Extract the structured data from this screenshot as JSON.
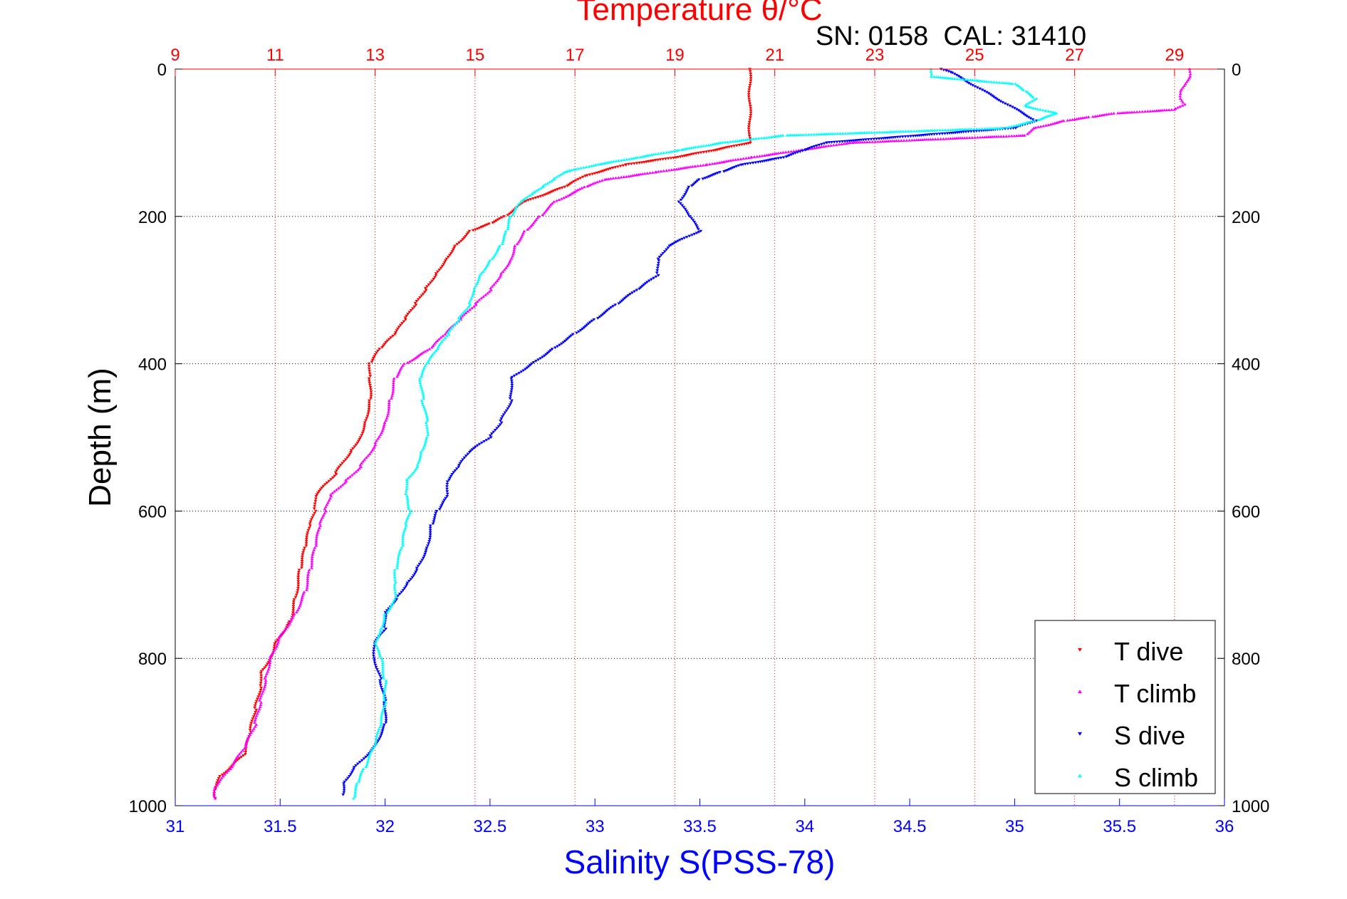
{
  "chart_data": {
    "type": "scatter",
    "title": "Temperature θ/°C",
    "subtitle": "SN: 0158  CAL: 31410",
    "ylabel": "Depth (m)",
    "xlabel_bottom": "Salinity S(PSS-78)",
    "xlabel_top": "Temperature θ/°C",
    "ylim": [
      0,
      1000
    ],
    "y_reversed": true,
    "y_ticks": [
      0,
      200,
      400,
      600,
      800,
      1000
    ],
    "salinity_axis": {
      "range": [
        31,
        36
      ],
      "ticks": [
        31,
        31.5,
        32,
        32.5,
        33,
        33.5,
        34,
        34.5,
        35,
        35.5,
        36
      ],
      "color": "#0000ff"
    },
    "temperature_axis": {
      "range": [
        9,
        30
      ],
      "ticks": [
        9,
        11,
        13,
        15,
        17,
        19,
        21,
        23,
        25,
        27,
        29
      ],
      "color": "#ff0000"
    },
    "grid": true,
    "legend_position": "bottom-right",
    "series": [
      {
        "name": "T dive",
        "axis": "temperature",
        "marker": "triangle-down",
        "color": "#ff0000",
        "points": [
          [
            0,
            20.5
          ],
          [
            100,
            20.5
          ],
          [
            110,
            19.8
          ],
          [
            120,
            19.0
          ],
          [
            130,
            18.0
          ],
          [
            145,
            17.2
          ],
          [
            160,
            16.8
          ],
          [
            180,
            16.0
          ],
          [
            200,
            15.6
          ],
          [
            210,
            15.3
          ],
          [
            220,
            14.9
          ],
          [
            240,
            14.6
          ],
          [
            260,
            14.4
          ],
          [
            280,
            14.2
          ],
          [
            300,
            14.0
          ],
          [
            320,
            13.8
          ],
          [
            340,
            13.6
          ],
          [
            360,
            13.4
          ],
          [
            380,
            13.1
          ],
          [
            400,
            12.9
          ],
          [
            420,
            12.9
          ],
          [
            450,
            12.9
          ],
          [
            480,
            12.8
          ],
          [
            500,
            12.7
          ],
          [
            520,
            12.5
          ],
          [
            550,
            12.2
          ],
          [
            580,
            11.8
          ],
          [
            600,
            11.8
          ],
          [
            620,
            11.7
          ],
          [
            650,
            11.6
          ],
          [
            680,
            11.5
          ],
          [
            720,
            11.4
          ],
          [
            750,
            11.3
          ],
          [
            780,
            11.0
          ],
          [
            800,
            10.9
          ],
          [
            820,
            10.7
          ],
          [
            840,
            10.7
          ],
          [
            870,
            10.6
          ],
          [
            900,
            10.5
          ],
          [
            930,
            10.4
          ],
          [
            960,
            9.9
          ],
          [
            980,
            9.8
          ],
          [
            990,
            9.8
          ]
        ]
      },
      {
        "name": "T climb",
        "axis": "temperature",
        "marker": "triangle-up",
        "color": "#ff00ff",
        "points": [
          [
            0,
            29.3
          ],
          [
            10,
            29.3
          ],
          [
            20,
            29.2
          ],
          [
            30,
            29.1
          ],
          [
            40,
            29.1
          ],
          [
            48,
            29.2
          ],
          [
            55,
            29.0
          ],
          [
            60,
            27.8
          ],
          [
            65,
            27.3
          ],
          [
            70,
            26.8
          ],
          [
            80,
            26.2
          ],
          [
            90,
            26.0
          ],
          [
            100,
            22.5
          ],
          [
            110,
            21.5
          ],
          [
            120,
            20.5
          ],
          [
            130,
            19.6
          ],
          [
            140,
            18.6
          ],
          [
            150,
            17.6
          ],
          [
            160,
            17.2
          ],
          [
            180,
            16.6
          ],
          [
            200,
            16.3
          ],
          [
            220,
            16.0
          ],
          [
            240,
            15.8
          ],
          [
            260,
            15.7
          ],
          [
            280,
            15.5
          ],
          [
            300,
            15.3
          ],
          [
            320,
            15.0
          ],
          [
            340,
            14.7
          ],
          [
            360,
            14.4
          ],
          [
            380,
            14.1
          ],
          [
            400,
            13.6
          ],
          [
            420,
            13.4
          ],
          [
            450,
            13.3
          ],
          [
            480,
            13.2
          ],
          [
            510,
            13.0
          ],
          [
            540,
            12.7
          ],
          [
            560,
            12.4
          ],
          [
            580,
            12.1
          ],
          [
            600,
            12.0
          ],
          [
            620,
            11.9
          ],
          [
            650,
            11.8
          ],
          [
            680,
            11.7
          ],
          [
            710,
            11.6
          ],
          [
            740,
            11.4
          ],
          [
            770,
            11.1
          ],
          [
            800,
            10.9
          ],
          [
            830,
            10.8
          ],
          [
            860,
            10.7
          ],
          [
            890,
            10.6
          ],
          [
            920,
            10.4
          ],
          [
            950,
            10.1
          ],
          [
            975,
            9.8
          ],
          [
            990,
            9.8
          ]
        ]
      },
      {
        "name": "S dive",
        "axis": "salinity",
        "marker": "triangle-down",
        "color": "#0000ff",
        "points": [
          [
            0,
            34.65
          ],
          [
            5,
            34.7
          ],
          [
            70,
            35.1
          ],
          [
            80,
            35.0
          ],
          [
            100,
            34.1
          ],
          [
            110,
            34.0
          ],
          [
            120,
            33.9
          ],
          [
            130,
            33.7
          ],
          [
            140,
            33.6
          ],
          [
            150,
            33.5
          ],
          [
            160,
            33.45
          ],
          [
            180,
            33.4
          ],
          [
            200,
            33.45
          ],
          [
            220,
            33.5
          ],
          [
            240,
            33.35
          ],
          [
            260,
            33.3
          ],
          [
            280,
            33.3
          ],
          [
            300,
            33.2
          ],
          [
            320,
            33.1
          ],
          [
            340,
            33.0
          ],
          [
            360,
            32.9
          ],
          [
            380,
            32.8
          ],
          [
            400,
            32.7
          ],
          [
            420,
            32.6
          ],
          [
            450,
            32.6
          ],
          [
            480,
            32.55
          ],
          [
            500,
            32.5
          ],
          [
            520,
            32.4
          ],
          [
            540,
            32.35
          ],
          [
            560,
            32.3
          ],
          [
            580,
            32.3
          ],
          [
            600,
            32.25
          ],
          [
            620,
            32.22
          ],
          [
            650,
            32.2
          ],
          [
            680,
            32.15
          ],
          [
            700,
            32.1
          ],
          [
            720,
            32.05
          ],
          [
            740,
            32.0
          ],
          [
            760,
            32.0
          ],
          [
            780,
            31.95
          ],
          [
            800,
            31.95
          ],
          [
            830,
            31.98
          ],
          [
            860,
            32.0
          ],
          [
            890,
            32.0
          ],
          [
            920,
            31.95
          ],
          [
            950,
            31.85
          ],
          [
            970,
            31.8
          ],
          [
            985,
            31.8
          ]
        ]
      },
      {
        "name": "S climb",
        "axis": "salinity",
        "marker": "triangle-up",
        "color": "#00ffff",
        "points": [
          [
            0,
            34.6
          ],
          [
            10,
            34.6
          ],
          [
            20,
            35.0
          ],
          [
            30,
            35.05
          ],
          [
            40,
            35.1
          ],
          [
            50,
            35.05
          ],
          [
            60,
            35.2
          ],
          [
            70,
            35.1
          ],
          [
            80,
            34.95
          ],
          [
            90,
            33.9
          ],
          [
            100,
            33.6
          ],
          [
            110,
            33.4
          ],
          [
            120,
            33.2
          ],
          [
            130,
            33.0
          ],
          [
            140,
            32.85
          ],
          [
            150,
            32.8
          ],
          [
            160,
            32.75
          ],
          [
            170,
            32.7
          ],
          [
            180,
            32.65
          ],
          [
            200,
            32.6
          ],
          [
            220,
            32.58
          ],
          [
            240,
            32.55
          ],
          [
            260,
            32.5
          ],
          [
            280,
            32.45
          ],
          [
            300,
            32.42
          ],
          [
            320,
            32.4
          ],
          [
            340,
            32.35
          ],
          [
            360,
            32.3
          ],
          [
            380,
            32.25
          ],
          [
            400,
            32.2
          ],
          [
            420,
            32.17
          ],
          [
            450,
            32.18
          ],
          [
            480,
            32.2
          ],
          [
            500,
            32.2
          ],
          [
            520,
            32.17
          ],
          [
            540,
            32.15
          ],
          [
            560,
            32.1
          ],
          [
            580,
            32.1
          ],
          [
            600,
            32.12
          ],
          [
            620,
            32.1
          ],
          [
            650,
            32.08
          ],
          [
            680,
            32.05
          ],
          [
            700,
            32.05
          ],
          [
            720,
            32.05
          ],
          [
            740,
            32.0
          ],
          [
            760,
            31.98
          ],
          [
            780,
            31.95
          ],
          [
            800,
            31.98
          ],
          [
            830,
            32.0
          ],
          [
            860,
            32.0
          ],
          [
            890,
            31.98
          ],
          [
            920,
            31.95
          ],
          [
            950,
            31.9
          ],
          [
            970,
            31.87
          ],
          [
            990,
            31.85
          ]
        ]
      }
    ]
  }
}
